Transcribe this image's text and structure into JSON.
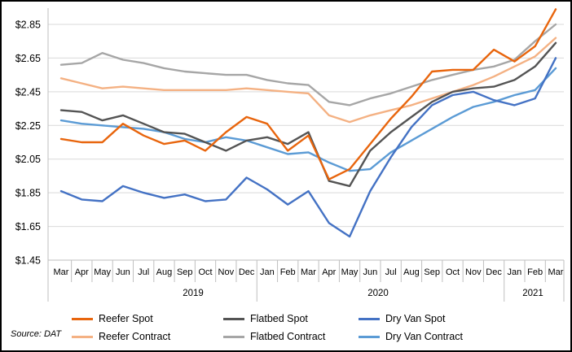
{
  "source_note": "Source: DAT",
  "chart_data": {
    "type": "line",
    "title": "",
    "legend_position": "bottom",
    "grid": true,
    "y_axis": {
      "min": 1.45,
      "max": 2.85,
      "step": 0.2,
      "tick_labels": [
        "$1.45",
        "$1.65",
        "$1.85",
        "$2.05",
        "$2.25",
        "$2.45",
        "$2.65",
        "$2.85"
      ]
    },
    "x_axis": {
      "months": [
        "Mar",
        "Apr",
        "May",
        "Jun",
        "Jul",
        "Aug",
        "Sep",
        "Oct",
        "Nov",
        "Dec",
        "Jan",
        "Feb",
        "Mar",
        "Apr",
        "May",
        "Jun",
        "Jul",
        "Aug",
        "Sep",
        "Oct",
        "Nov",
        "Dec",
        "Jan",
        "Feb",
        "Mar"
      ],
      "year_groups": [
        {
          "label": "2019",
          "month_count": 10
        },
        {
          "label": "2020",
          "month_count": 12
        },
        {
          "label": "2021",
          "month_count": 3
        }
      ]
    },
    "series": [
      {
        "name": "Reefer Spot",
        "color": "#E8650D",
        "values": [
          2.17,
          2.15,
          2.15,
          2.26,
          2.19,
          2.14,
          2.16,
          2.1,
          2.21,
          2.3,
          2.26,
          2.1,
          2.19,
          1.93,
          1.99,
          2.14,
          2.29,
          2.42,
          2.57,
          2.58,
          2.58,
          2.7,
          2.63,
          2.72,
          2.94
        ]
      },
      {
        "name": "Flatbed Spot",
        "color": "#545454",
        "values": [
          2.34,
          2.33,
          2.28,
          2.31,
          2.26,
          2.21,
          2.2,
          2.15,
          2.1,
          2.16,
          2.18,
          2.14,
          2.21,
          1.92,
          1.89,
          2.1,
          2.21,
          2.3,
          2.39,
          2.45,
          2.47,
          2.48,
          2.52,
          2.6,
          2.74
        ]
      },
      {
        "name": "Dry Van Spot",
        "color": "#4472C4",
        "values": [
          1.86,
          1.81,
          1.8,
          1.89,
          1.85,
          1.82,
          1.84,
          1.8,
          1.81,
          1.94,
          1.87,
          1.78,
          1.86,
          1.67,
          1.59,
          1.86,
          2.06,
          2.24,
          2.37,
          2.43,
          2.45,
          2.4,
          2.37,
          2.41,
          2.65
        ]
      },
      {
        "name": "Reefer Contract",
        "color": "#F4B183",
        "values": [
          2.53,
          2.5,
          2.47,
          2.48,
          2.47,
          2.46,
          2.46,
          2.46,
          2.46,
          2.47,
          2.46,
          2.45,
          2.44,
          2.31,
          2.27,
          2.31,
          2.34,
          2.37,
          2.41,
          2.45,
          2.49,
          2.54,
          2.6,
          2.66,
          2.77
        ]
      },
      {
        "name": "Flatbed Contract",
        "color": "#A6A6A6",
        "values": [
          2.61,
          2.62,
          2.68,
          2.64,
          2.62,
          2.59,
          2.57,
          2.56,
          2.55,
          2.55,
          2.52,
          2.5,
          2.49,
          2.39,
          2.37,
          2.41,
          2.44,
          2.48,
          2.52,
          2.55,
          2.58,
          2.6,
          2.64,
          2.75,
          2.85
        ]
      },
      {
        "name": "Dry Van Contract",
        "color": "#5B9BD5",
        "values": [
          2.28,
          2.26,
          2.25,
          2.24,
          2.23,
          2.21,
          2.17,
          2.15,
          2.18,
          2.16,
          2.12,
          2.08,
          2.09,
          2.03,
          1.98,
          1.99,
          2.09,
          2.16,
          2.23,
          2.3,
          2.36,
          2.39,
          2.43,
          2.46,
          2.59
        ]
      }
    ]
  }
}
